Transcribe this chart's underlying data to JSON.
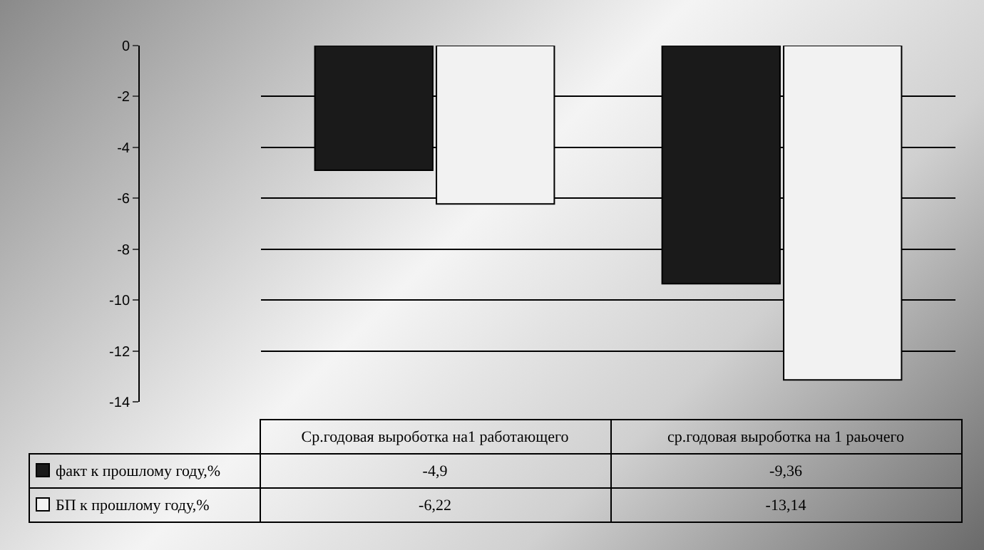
{
  "chart_data": {
    "type": "bar",
    "categories": [
      "Ср.годовая выроботка на1  работающего",
      "ср.годовая выроботка на 1  раьочего"
    ],
    "series": [
      {
        "name": "факт к прошлому году,%",
        "color": "#1a1a1a",
        "values": [
          -4.9,
          -9.36
        ],
        "value_labels": [
          "-4,9",
          "-9,36"
        ]
      },
      {
        "name": "БП к прошлому году,%",
        "color": "#f2f2f2",
        "values": [
          -6.22,
          -13.14
        ],
        "value_labels": [
          "-6,22",
          "-13,14"
        ]
      }
    ],
    "ylim": [
      -14,
      0
    ],
    "yticks": [
      0,
      -2,
      -4,
      -6,
      -8,
      -10,
      -12,
      -14
    ],
    "grid": "y",
    "legend": "bottom left"
  }
}
